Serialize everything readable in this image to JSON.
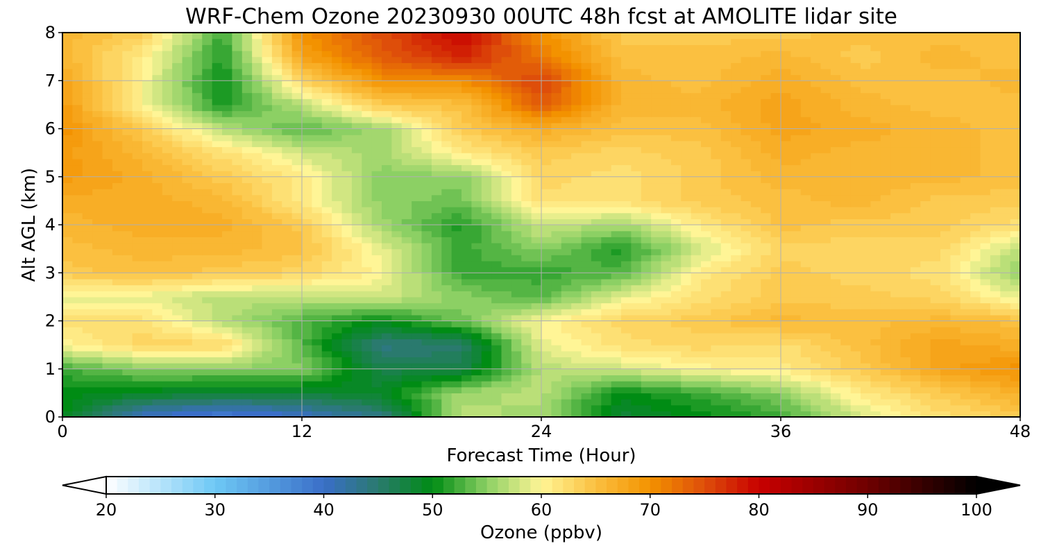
{
  "chart_data": {
    "type": "heatmap",
    "title": "WRF-Chem Ozone  20230930 00UTC 48h fcst at AMOLITE lidar site",
    "xlabel": "Forecast Time (Hour)",
    "ylabel": "Alt AGL (km)",
    "xlim": [
      0,
      48
    ],
    "ylim": [
      0,
      8
    ],
    "xticks": [
      0,
      12,
      24,
      36,
      48
    ],
    "yticks": [
      0,
      1,
      2,
      3,
      4,
      5,
      6,
      7,
      8
    ],
    "grid": true,
    "x_hours": [
      0,
      4,
      8,
      12,
      16,
      20,
      24,
      28,
      32,
      36,
      40,
      44,
      48
    ],
    "y_km": [
      0,
      0.5,
      1,
      1.5,
      2,
      2.5,
      3,
      3.5,
      4,
      4.5,
      5,
      5.5,
      6,
      6.5,
      7,
      7.5,
      8
    ],
    "ozone_ppbv": [
      [
        50,
        40,
        38,
        40,
        44,
        57,
        56,
        48,
        50,
        52,
        58,
        62,
        64
      ],
      [
        50,
        49,
        48,
        48,
        49,
        56,
        57,
        50,
        52,
        55,
        61,
        64,
        67
      ],
      [
        52,
        55,
        55,
        55,
        47,
        47,
        57,
        58,
        60,
        61,
        64,
        68,
        70
      ],
      [
        60,
        63,
        63,
        53,
        44,
        45,
        59,
        62,
        63,
        62,
        65,
        68,
        67
      ],
      [
        62,
        62,
        57,
        53,
        50,
        54,
        60,
        63,
        64,
        66,
        65,
        66,
        65
      ],
      [
        59,
        59,
        57,
        57,
        58,
        55,
        53,
        59,
        62,
        64,
        64,
        63,
        59
      ],
      [
        64,
        65,
        64,
        63,
        60,
        52,
        52,
        53,
        61,
        64,
        63,
        62,
        55
      ],
      [
        65,
        66,
        66,
        65,
        59,
        52,
        55,
        51,
        58,
        63,
        63,
        63,
        57
      ],
      [
        66,
        67,
        67,
        64,
        56,
        51,
        58,
        56,
        61,
        65,
        64,
        64,
        62
      ],
      [
        67,
        67,
        66,
        61,
        55,
        54,
        62,
        62,
        64,
        65,
        66,
        64,
        64
      ],
      [
        69,
        67,
        64,
        61,
        55,
        55,
        63,
        62,
        64,
        66,
        66,
        66,
        65
      ],
      [
        69,
        66,
        62,
        58,
        56,
        61,
        64,
        63,
        64,
        67,
        66,
        66,
        65
      ],
      [
        70,
        64,
        57,
        53,
        56,
        64,
        67,
        65,
        65,
        68,
        67,
        66,
        65
      ],
      [
        69,
        60,
        51,
        57,
        64,
        65,
        74,
        66,
        66,
        68,
        66,
        65,
        65
      ],
      [
        68,
        60,
        50,
        63,
        70,
        70,
        76,
        66,
        65,
        67,
        65,
        65,
        66
      ],
      [
        66,
        61,
        51,
        68,
        74,
        78,
        72,
        65,
        65,
        66,
        64,
        66,
        65
      ],
      [
        66,
        64,
        52,
        70,
        75,
        80,
        70,
        64,
        64,
        64,
        65,
        65,
        65
      ]
    ],
    "colorbar": {
      "label": "Ozone  (ppbv)",
      "min": 20,
      "max": 100,
      "step": 1,
      "ticks": [
        20,
        30,
        40,
        50,
        60,
        70,
        80,
        90,
        100
      ],
      "extend": "both",
      "stops": [
        {
          "v": 20,
          "c": "#ffffff"
        },
        {
          "v": 30,
          "c": "#6ec8f5"
        },
        {
          "v": 40,
          "c": "#3a6ec8"
        },
        {
          "v": 45,
          "c": "#2a7a6e"
        },
        {
          "v": 50,
          "c": "#008c14"
        },
        {
          "v": 55,
          "c": "#8cd064"
        },
        {
          "v": 60,
          "c": "#fff596"
        },
        {
          "v": 65,
          "c": "#fbc040"
        },
        {
          "v": 70,
          "c": "#f39200"
        },
        {
          "v": 75,
          "c": "#de4e0a"
        },
        {
          "v": 80,
          "c": "#c80000"
        },
        {
          "v": 90,
          "c": "#6e0000"
        },
        {
          "v": 100,
          "c": "#000000"
        }
      ]
    }
  }
}
